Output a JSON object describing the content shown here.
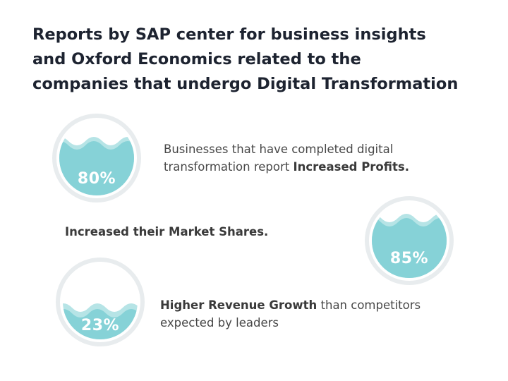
{
  "title": {
    "line1": "Reports by SAP center for business insights",
    "line2": "and Oxford Economics related to the",
    "line3": "companies that undergo Digital Transformation"
  },
  "stats": [
    {
      "value": "80%",
      "fill_fraction": 0.8,
      "text_line1": "Businesses that have completed digital",
      "text_line2_prefix": "transformation report ",
      "text_line2_bold": "Increased Profits."
    },
    {
      "value": "85%",
      "fill_fraction": 0.85,
      "text_bold": "Increased their Market Shares."
    },
    {
      "value": "23%",
      "fill_fraction": 0.23,
      "text_line1_bold": "Higher Revenue Growth",
      "text_line1_suffix": " than competitors",
      "text_line2": "expected by leaders"
    }
  ],
  "colors": {
    "water": "#7ecfd3",
    "water_light": "#b6e4e6",
    "ring": "#e8ecee",
    "title": "#1d2330"
  }
}
